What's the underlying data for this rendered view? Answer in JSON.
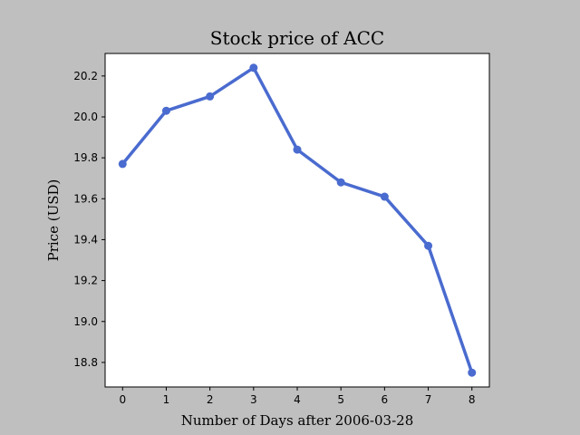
{
  "chart_data": {
    "type": "line",
    "title": "Stock price of ACC",
    "xlabel": "Number of Days after 2006-03-28",
    "ylabel": "Price (USD)",
    "x": [
      0,
      1,
      2,
      3,
      4,
      5,
      6,
      7,
      8
    ],
    "xticks": [
      "0",
      "1",
      "2",
      "3",
      "4",
      "5",
      "6",
      "7",
      "8"
    ],
    "xlim": [
      -0.4,
      8.4
    ],
    "yticks": [
      "18.8",
      "19.0",
      "19.2",
      "19.4",
      "19.6",
      "19.8",
      "20.0",
      "20.2"
    ],
    "ylim": [
      18.68,
      20.31
    ],
    "grid": false,
    "series": [
      {
        "color": "#4a6bcf",
        "marker": "circle",
        "values": [
          19.77,
          20.03,
          20.1,
          20.24,
          19.84,
          19.68,
          19.61,
          19.37,
          18.75
        ]
      }
    ]
  }
}
